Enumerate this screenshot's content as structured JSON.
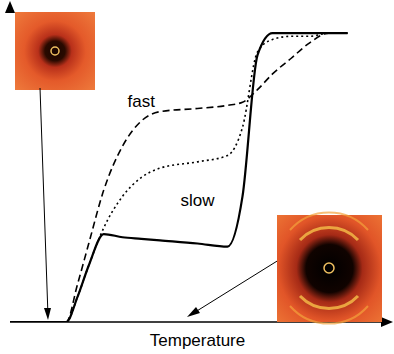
{
  "chart_data": {
    "type": "line",
    "x_label": "Temperature",
    "xlim": [
      0,
      100
    ],
    "ylim": [
      0,
      100
    ],
    "tick_labels": false,
    "grid": false,
    "x": [
      0,
      15,
      18,
      21,
      25,
      30,
      35,
      40,
      50,
      58,
      62,
      66,
      70,
      75,
      80,
      85,
      90
    ],
    "series": [
      {
        "name": "fast",
        "color": "#000000",
        "line_style": "dashed",
        "values": [
          0,
          0,
          12,
          25,
          42,
          56,
          64,
          67,
          68,
          69,
          70,
          74,
          79,
          84,
          89,
          92,
          92
        ]
      },
      {
        "color": "#000000",
        "line_style": "dotted",
        "values": [
          0,
          0,
          8,
          18,
          30,
          40,
          46,
          49,
          51,
          53,
          62,
          86,
          90,
          91,
          91,
          92,
          92
        ]
      },
      {
        "name": "slow",
        "color": "#000000",
        "line_style": "solid",
        "values": [
          0,
          0,
          8,
          18,
          28,
          27,
          26.5,
          26,
          25,
          24,
          40,
          85,
          92,
          92,
          92,
          92,
          92
        ]
      }
    ]
  }
}
